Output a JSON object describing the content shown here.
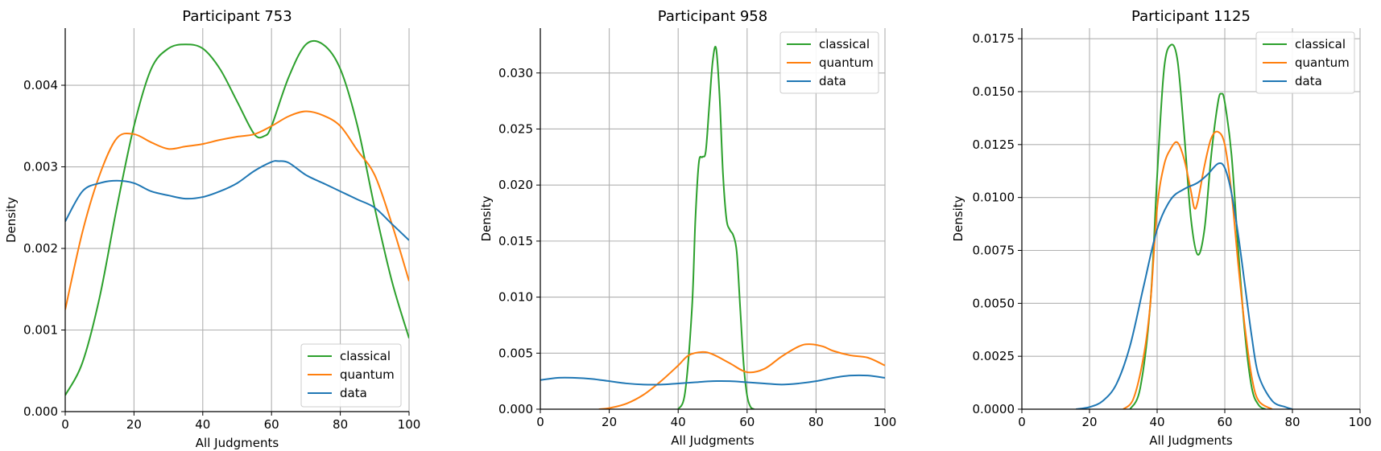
{
  "figure_title": "",
  "colors": {
    "classical": "#2ca02c",
    "quantum": "#ff7f0e",
    "data": "#1f77b4",
    "grid": "#b0b0b0"
  },
  "chart_data": [
    {
      "type": "line",
      "title": "Participant 753",
      "xlabel": "All Judgments",
      "ylabel": "Density",
      "xlim": [
        0,
        100
      ],
      "ylim": [
        0,
        0.0047
      ],
      "xticks": [
        0,
        20,
        40,
        60,
        80,
        100
      ],
      "yticks": [
        0.0,
        0.001,
        0.002,
        0.003,
        0.004
      ],
      "ytick_labels": [
        "0.000",
        "0.001",
        "0.002",
        "0.003",
        "0.004"
      ],
      "grid": true,
      "legend_position": "lower-right",
      "series": [
        {
          "name": "classical",
          "color": "#2ca02c",
          "x": [
            0,
            5,
            10,
            15,
            20,
            25,
            30,
            35,
            40,
            45,
            50,
            55,
            58,
            60,
            65,
            70,
            75,
            80,
            85,
            90,
            95,
            100
          ],
          "y": [
            0.0002,
            0.0006,
            0.0014,
            0.0025,
            0.0035,
            0.0042,
            0.00445,
            0.0045,
            0.00445,
            0.0042,
            0.0038,
            0.0034,
            0.00338,
            0.0035,
            0.0041,
            0.0045,
            0.0045,
            0.0042,
            0.0035,
            0.0025,
            0.0016,
            0.0009
          ]
        },
        {
          "name": "quantum",
          "color": "#ff7f0e",
          "x": [
            0,
            5,
            10,
            15,
            20,
            25,
            30,
            35,
            40,
            45,
            50,
            55,
            60,
            65,
            70,
            75,
            80,
            85,
            90,
            95,
            100
          ],
          "y": [
            0.00125,
            0.0022,
            0.0029,
            0.00335,
            0.0034,
            0.0033,
            0.00322,
            0.00325,
            0.00328,
            0.00333,
            0.00337,
            0.0034,
            0.0035,
            0.00362,
            0.00368,
            0.00363,
            0.0035,
            0.0032,
            0.0029,
            0.0023,
            0.0016
          ]
        },
        {
          "name": "data",
          "color": "#1f77b4",
          "x": [
            0,
            5,
            10,
            15,
            20,
            25,
            30,
            35,
            40,
            45,
            50,
            55,
            60,
            62,
            65,
            70,
            75,
            80,
            85,
            90,
            95,
            100
          ],
          "y": [
            0.00233,
            0.0027,
            0.0028,
            0.00283,
            0.0028,
            0.0027,
            0.00265,
            0.00261,
            0.00263,
            0.0027,
            0.0028,
            0.00295,
            0.00306,
            0.00307,
            0.00305,
            0.0029,
            0.0028,
            0.0027,
            0.0026,
            0.0025,
            0.0023,
            0.0021
          ]
        }
      ]
    },
    {
      "type": "line",
      "title": "Participant 958",
      "xlabel": "All Judgments",
      "ylabel": "Density",
      "xlim": [
        0,
        100
      ],
      "ylim": [
        0,
        0.034
      ],
      "xticks": [
        0,
        20,
        40,
        60,
        80,
        100
      ],
      "yticks": [
        0.0,
        0.005,
        0.01,
        0.015,
        0.02,
        0.025,
        0.03
      ],
      "ytick_labels": [
        "0.000",
        "0.005",
        "0.010",
        "0.015",
        "0.020",
        "0.025",
        "0.030"
      ],
      "grid": true,
      "legend_position": "upper-right",
      "series": [
        {
          "name": "classical",
          "color": "#2ca02c",
          "x": [
            40,
            42,
            44,
            45,
            46,
            47,
            48,
            49,
            50,
            51,
            52,
            53,
            54,
            55,
            56,
            57,
            58,
            59,
            60,
            61,
            62
          ],
          "y": [
            0.0,
            0.0015,
            0.009,
            0.017,
            0.022,
            0.0225,
            0.023,
            0.027,
            0.031,
            0.0322,
            0.028,
            0.021,
            0.017,
            0.016,
            0.0155,
            0.014,
            0.009,
            0.004,
            0.0012,
            0.0002,
            0.0
          ]
        },
        {
          "name": "quantum",
          "color": "#ff7f0e",
          "x": [
            17,
            20,
            25,
            30,
            35,
            40,
            43,
            47,
            50,
            55,
            60,
            65,
            70,
            75,
            78,
            82,
            85,
            90,
            95,
            100
          ],
          "y": [
            0.0,
            0.0001,
            0.0005,
            0.0013,
            0.0025,
            0.0039,
            0.0048,
            0.0051,
            0.0049,
            0.0041,
            0.0033,
            0.0036,
            0.0047,
            0.0056,
            0.0058,
            0.0056,
            0.0052,
            0.0048,
            0.0046,
            0.0039
          ]
        },
        {
          "name": "data",
          "color": "#1f77b4",
          "x": [
            0,
            5,
            10,
            15,
            20,
            25,
            30,
            35,
            40,
            45,
            50,
            55,
            60,
            65,
            70,
            75,
            80,
            85,
            90,
            95,
            100
          ],
          "y": [
            0.0026,
            0.0028,
            0.0028,
            0.0027,
            0.0025,
            0.0023,
            0.0022,
            0.0022,
            0.0023,
            0.0024,
            0.0025,
            0.0025,
            0.0024,
            0.0023,
            0.0022,
            0.0023,
            0.0025,
            0.0028,
            0.003,
            0.003,
            0.0028
          ]
        }
      ]
    },
    {
      "type": "line",
      "title": "Participant 1125",
      "xlabel": "All Judgments",
      "ylabel": "Density",
      "xlim": [
        0,
        100
      ],
      "ylim": [
        0,
        0.018
      ],
      "xticks": [
        0,
        20,
        40,
        60,
        80,
        100
      ],
      "yticks": [
        0.0,
        0.0025,
        0.005,
        0.0075,
        0.01,
        0.0125,
        0.015,
        0.0175
      ],
      "ytick_labels": [
        "0.0000",
        "0.0025",
        "0.0050",
        "0.0075",
        "0.0100",
        "0.0125",
        "0.0150",
        "0.0175"
      ],
      "grid": true,
      "legend_position": "upper-right",
      "series": [
        {
          "name": "classical",
          "color": "#2ca02c",
          "x": [
            32,
            35,
            38,
            40,
            42,
            44,
            46,
            48,
            50,
            52,
            54,
            56,
            58,
            59,
            60,
            62,
            64,
            66,
            68,
            70,
            72
          ],
          "y": [
            0.0,
            0.001,
            0.005,
            0.011,
            0.016,
            0.0172,
            0.0165,
            0.013,
            0.009,
            0.0073,
            0.0085,
            0.012,
            0.0145,
            0.0149,
            0.0145,
            0.012,
            0.0075,
            0.0035,
            0.001,
            0.0002,
            0.0
          ]
        },
        {
          "name": "quantum",
          "color": "#ff7f0e",
          "x": [
            30,
            33,
            36,
            38,
            40,
            42,
            44,
            46,
            48,
            50,
            51,
            52,
            54,
            56,
            58,
            60,
            62,
            64,
            66,
            68,
            70,
            74
          ],
          "y": [
            0.0,
            0.0005,
            0.0025,
            0.005,
            0.0095,
            0.0115,
            0.0123,
            0.0126,
            0.0118,
            0.0103,
            0.0095,
            0.0098,
            0.0115,
            0.0128,
            0.0131,
            0.0125,
            0.0102,
            0.0068,
            0.0038,
            0.0015,
            0.0004,
            0.0
          ]
        },
        {
          "name": "data",
          "color": "#1f77b4",
          "x": [
            16,
            20,
            24,
            28,
            32,
            36,
            40,
            44,
            48,
            52,
            55,
            58,
            60,
            62,
            64,
            66,
            68,
            70,
            74,
            78,
            80
          ],
          "y": [
            0.0,
            0.0001,
            0.0004,
            0.0012,
            0.003,
            0.0058,
            0.0085,
            0.0099,
            0.0104,
            0.0107,
            0.0111,
            0.0116,
            0.0114,
            0.0102,
            0.0082,
            0.0058,
            0.0034,
            0.0016,
            0.0004,
            0.0001,
            0.0
          ]
        }
      ]
    }
  ]
}
